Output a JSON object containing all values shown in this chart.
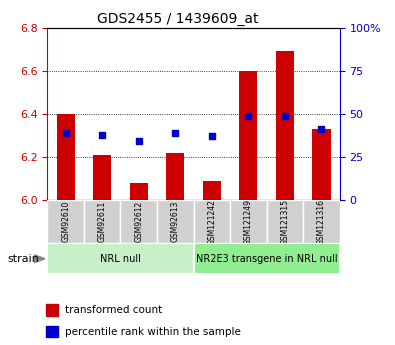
{
  "title": "GDS2455 / 1439609_at",
  "samples": [
    "GSM92610",
    "GSM92611",
    "GSM92612",
    "GSM92613",
    "GSM121242",
    "GSM121249",
    "GSM121315",
    "GSM121316"
  ],
  "transformed_counts": [
    6.4,
    6.21,
    6.08,
    6.22,
    6.09,
    6.6,
    6.69,
    6.33
  ],
  "percentile_ranks": [
    39.0,
    38.0,
    34.0,
    39.0,
    37.0,
    49.0,
    49.0,
    41.0
  ],
  "groups": [
    {
      "label": "NRL null",
      "start": 0,
      "end": 4,
      "color": "#c8f0c8"
    },
    {
      "label": "NR2E3 transgene in NRL null",
      "start": 4,
      "end": 8,
      "color": "#90ee90"
    }
  ],
  "ylim_left": [
    6.0,
    6.8
  ],
  "ylim_right": [
    0,
    100
  ],
  "yticks_left": [
    6.0,
    6.2,
    6.4,
    6.6,
    6.8
  ],
  "yticks_right": [
    0,
    25,
    50,
    75,
    100
  ],
  "ytick_labels_right": [
    "0",
    "25",
    "50",
    "75",
    "100%"
  ],
  "bar_color": "#cc0000",
  "dot_color": "#0000cc",
  "bar_width": 0.5,
  "left_tick_color": "#cc0000",
  "right_tick_color": "#0000cc",
  "bg_color": "#ffffff",
  "plot_bg": "#ffffff",
  "legend_bar_label": "transformed count",
  "legend_dot_label": "percentile rank within the sample",
  "strain_label": "strain",
  "title_fontsize": 10
}
